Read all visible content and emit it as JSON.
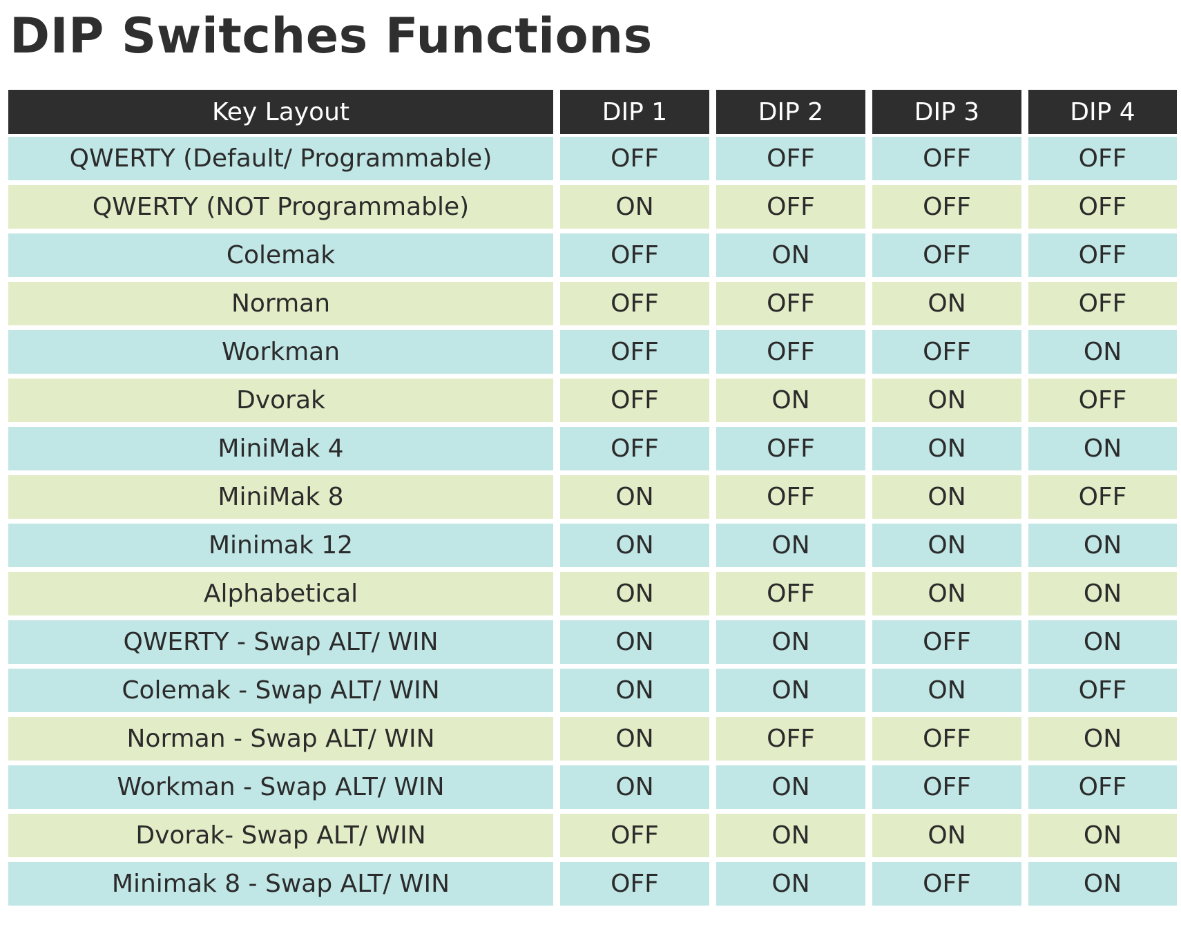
{
  "title": "DIP Switches Functions",
  "table": {
    "headers": [
      "Key Layout",
      "DIP 1",
      "DIP 2",
      "DIP 3",
      "DIP 4"
    ],
    "rows": [
      {
        "layout": "QWERTY (Default/ Programmable)",
        "dip": [
          "OFF",
          "OFF",
          "OFF",
          "OFF"
        ],
        "color": "blue"
      },
      {
        "layout": "QWERTY (NOT Programmable)",
        "dip": [
          "ON",
          "OFF",
          "OFF",
          "OFF"
        ],
        "color": "green"
      },
      {
        "layout": "Colemak",
        "dip": [
          "OFF",
          "ON",
          "OFF",
          "OFF"
        ],
        "color": "blue"
      },
      {
        "layout": "Norman",
        "dip": [
          "OFF",
          "OFF",
          "ON",
          "OFF"
        ],
        "color": "green"
      },
      {
        "layout": "Workman",
        "dip": [
          "OFF",
          "OFF",
          "OFF",
          "ON"
        ],
        "color": "blue"
      },
      {
        "layout": "Dvorak",
        "dip": [
          "OFF",
          "ON",
          "ON",
          "OFF"
        ],
        "color": "green"
      },
      {
        "layout": "MiniMak 4",
        "dip": [
          "OFF",
          "OFF",
          "ON",
          "ON"
        ],
        "color": "blue"
      },
      {
        "layout": "MiniMak 8",
        "dip": [
          "ON",
          "OFF",
          "ON",
          "OFF"
        ],
        "color": "green"
      },
      {
        "layout": "Minimak 12",
        "dip": [
          "ON",
          "ON",
          "ON",
          "ON"
        ],
        "color": "blue"
      },
      {
        "layout": "Alphabetical",
        "dip": [
          "ON",
          "OFF",
          "ON",
          "ON"
        ],
        "color": "green"
      },
      {
        "layout": "QWERTY - Swap ALT/ WIN",
        "dip": [
          "ON",
          "ON",
          "OFF",
          "ON"
        ],
        "color": "blue"
      },
      {
        "layout": "Colemak - Swap ALT/ WIN",
        "dip": [
          "ON",
          "ON",
          "ON",
          "OFF"
        ],
        "color": "blue"
      },
      {
        "layout": "Norman - Swap ALT/ WIN",
        "dip": [
          "ON",
          "OFF",
          "OFF",
          "ON"
        ],
        "color": "green"
      },
      {
        "layout": "Workman - Swap ALT/ WIN",
        "dip": [
          "ON",
          "ON",
          "OFF",
          "OFF"
        ],
        "color": "blue"
      },
      {
        "layout": "Dvorak- Swap ALT/ WIN",
        "dip": [
          "OFF",
          "ON",
          "ON",
          "ON"
        ],
        "color": "green"
      },
      {
        "layout": "Minimak 8 - Swap ALT/ WIN",
        "dip": [
          "OFF",
          "ON",
          "OFF",
          "ON"
        ],
        "color": "blue"
      }
    ]
  },
  "colors": {
    "header_bg": "#2e2e2e",
    "header_text": "#ffffff",
    "row_blue": "#c0e6e5",
    "row_green": "#e2ecc6",
    "text": "#2b2b2b"
  }
}
